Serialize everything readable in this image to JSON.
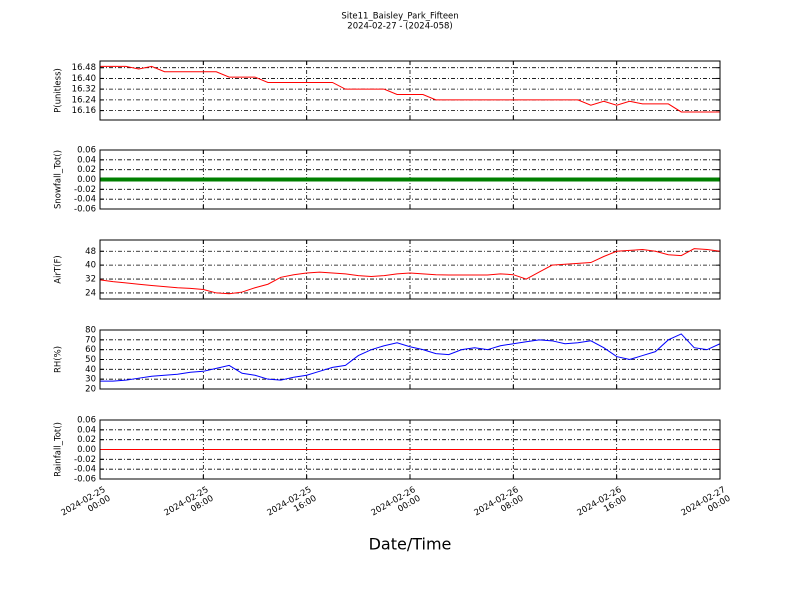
{
  "title": "Site11_Baisley_Park_Fifteen",
  "subtitle": "2024-02-27 - (2024-058)",
  "xlabel": "Date/Time",
  "xlim": [
    0,
    48
  ],
  "xticks": [
    {
      "value": 0,
      "label": "2024-02-25\n00:00"
    },
    {
      "value": 8,
      "label": "2024-02-25\n08:00"
    },
    {
      "value": 16,
      "label": "2024-02-25\n16:00"
    },
    {
      "value": 24,
      "label": "2024-02-26\n00:00"
    },
    {
      "value": 32,
      "label": "2024-02-26\n08:00"
    },
    {
      "value": 40,
      "label": "2024-02-26\n16:00"
    },
    {
      "value": 48,
      "label": "2024-02-27\n00:00"
    }
  ],
  "x": [
    0,
    1,
    2,
    3,
    4,
    5,
    6,
    7,
    8,
    9,
    10,
    11,
    12,
    13,
    14,
    15,
    16,
    17,
    18,
    19,
    20,
    21,
    22,
    23,
    24,
    25,
    26,
    27,
    28,
    29,
    30,
    31,
    32,
    33,
    34,
    35,
    36,
    37,
    38,
    39,
    40,
    41,
    42,
    43,
    44,
    45,
    46,
    47,
    48
  ],
  "chart_data": [
    {
      "type": "line",
      "ylabel": "P(unitless)",
      "ylim": [
        16.09,
        16.53
      ],
      "grid": true,
      "yticks": [
        16.16,
        16.24,
        16.32,
        {
          "value": 16.4,
          "label": "16.40"
        },
        16.48
      ],
      "series": [
        {
          "color": "#ff0000",
          "linewidth": 1,
          "values": [
            16.49,
            16.49,
            16.49,
            16.47,
            16.49,
            16.45,
            16.45,
            16.45,
            16.45,
            16.45,
            16.41,
            16.41,
            16.41,
            16.37,
            16.37,
            16.37,
            16.37,
            16.37,
            16.37,
            16.32,
            16.32,
            16.32,
            16.32,
            16.28,
            16.28,
            16.28,
            16.24,
            16.24,
            16.24,
            16.24,
            16.24,
            16.24,
            16.24,
            16.24,
            16.24,
            16.24,
            16.24,
            16.24,
            16.2,
            16.23,
            16.2,
            16.23,
            16.21,
            16.21,
            16.21,
            16.15,
            16.15,
            16.15,
            16.15
          ]
        }
      ]
    },
    {
      "type": "line",
      "ylabel": "Snowfall_Tot()",
      "ylim": [
        -0.06,
        0.06
      ],
      "grid": true,
      "yticks": [
        -0.06,
        -0.04,
        -0.02,
        {
          "value": 0,
          "label": "0.00"
        },
        0.02,
        0.04,
        0.06
      ],
      "series": [
        {
          "color": "#007f00",
          "linewidth": 4,
          "values": [
            0,
            0,
            0,
            0,
            0,
            0,
            0,
            0,
            0,
            0,
            0,
            0,
            0,
            0,
            0,
            0,
            0,
            0,
            0,
            0,
            0,
            0,
            0,
            0,
            0,
            0,
            0,
            0,
            0,
            0,
            0,
            0,
            0,
            0,
            0,
            0,
            0,
            0,
            0,
            0,
            0,
            0,
            0,
            0,
            0,
            0,
            0,
            0,
            0
          ]
        }
      ]
    },
    {
      "type": "line",
      "ylabel": "AirT(F)",
      "ylim": [
        20.5,
        54.5
      ],
      "grid": true,
      "yticks": [
        24,
        32,
        40,
        48
      ],
      "series": [
        {
          "color": "#ff0000",
          "linewidth": 1,
          "values": [
            31.5,
            30.5,
            29.8,
            29,
            28.3,
            27.6,
            27,
            26.6,
            26,
            24,
            23.5,
            24.5,
            27,
            29,
            33,
            34.5,
            35.5,
            36,
            35.5,
            35,
            34,
            33.5,
            34,
            35,
            35.5,
            35,
            34.5,
            34.3,
            34.3,
            34.3,
            34.3,
            35,
            34.5,
            32,
            36,
            40,
            40.5,
            41,
            41.5,
            45,
            48,
            48.5,
            49,
            48,
            46,
            45.5,
            49.5,
            49,
            48
          ]
        }
      ]
    },
    {
      "type": "line",
      "ylabel": "RH(%)",
      "ylim": [
        20,
        80
      ],
      "grid": true,
      "yticks": [
        20,
        30,
        40,
        50,
        60,
        70,
        80
      ],
      "series": [
        {
          "color": "#0000ff",
          "linewidth": 1,
          "values": [
            28,
            28,
            29,
            31,
            33,
            34,
            35,
            37,
            38,
            41,
            44,
            36,
            34,
            30,
            29,
            32,
            34,
            38,
            42,
            44,
            54,
            60,
            64,
            67,
            63,
            60,
            56,
            55,
            60,
            62,
            60,
            64,
            66,
            68,
            70,
            69,
            66,
            67,
            69,
            62,
            53,
            50,
            54,
            58,
            70,
            76,
            62,
            60,
            66
          ]
        }
      ]
    },
    {
      "type": "line",
      "ylabel": "Rainfall_Tot()",
      "ylim": [
        -0.06,
        0.06
      ],
      "grid": true,
      "yticks": [
        -0.06,
        -0.04,
        -0.02,
        {
          "value": 0,
          "label": "0.00"
        },
        0.02,
        0.04,
        0.06
      ],
      "series": [
        {
          "color": "#ff0000",
          "linewidth": 1,
          "values": [
            0,
            0,
            0,
            0,
            0,
            0,
            0,
            0,
            0,
            0,
            0,
            0,
            0,
            0,
            0,
            0,
            0,
            0,
            0,
            0,
            0,
            0,
            0,
            0,
            0,
            0,
            0,
            0,
            0,
            0,
            0,
            0,
            0,
            0,
            0,
            0,
            0,
            0,
            0,
            0,
            0,
            0,
            0,
            0,
            0,
            0,
            0,
            0,
            0
          ]
        }
      ]
    }
  ]
}
